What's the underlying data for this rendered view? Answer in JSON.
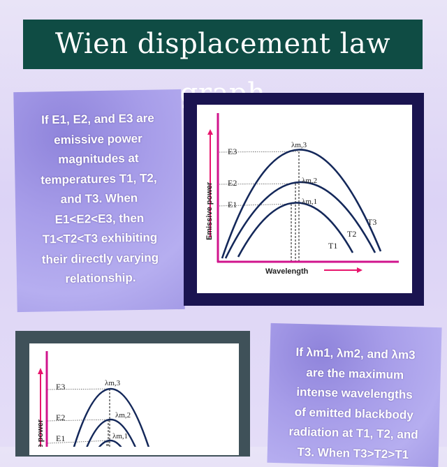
{
  "title": "Wien displacement law graph",
  "card_left": {
    "lines": [
      "If E1, E2, and E3 are",
      "emissive power",
      "magnitudes at",
      "temperatures T1, T2,",
      "and T3. When",
      "E1<E2<E3, then",
      "T1<T2<T3 exhibiting",
      "their directly varying",
      "relationship."
    ]
  },
  "card_right": {
    "lines": [
      "If λm1, λm2, and λm3",
      "are the maximum",
      "intense wavelengths",
      "of emitted blackbody",
      "radiation at T1, T2, and",
      "T3. When T3>T2>T1"
    ]
  },
  "graph": {
    "y_label": "Emissive power",
    "x_label": "Wavelength",
    "e_labels": [
      "E3",
      "E2",
      "E1"
    ],
    "lambda_labels": [
      "λm,3",
      "λm,2",
      "λm,1"
    ],
    "t_labels": [
      "T3",
      "T2",
      "T1"
    ],
    "colors": {
      "axis": "#d0148c",
      "curve": "#14285a",
      "frame_top": "#1a1450",
      "frame_bottom": "#3f5159",
      "title_bg": "#0f4c44"
    }
  }
}
